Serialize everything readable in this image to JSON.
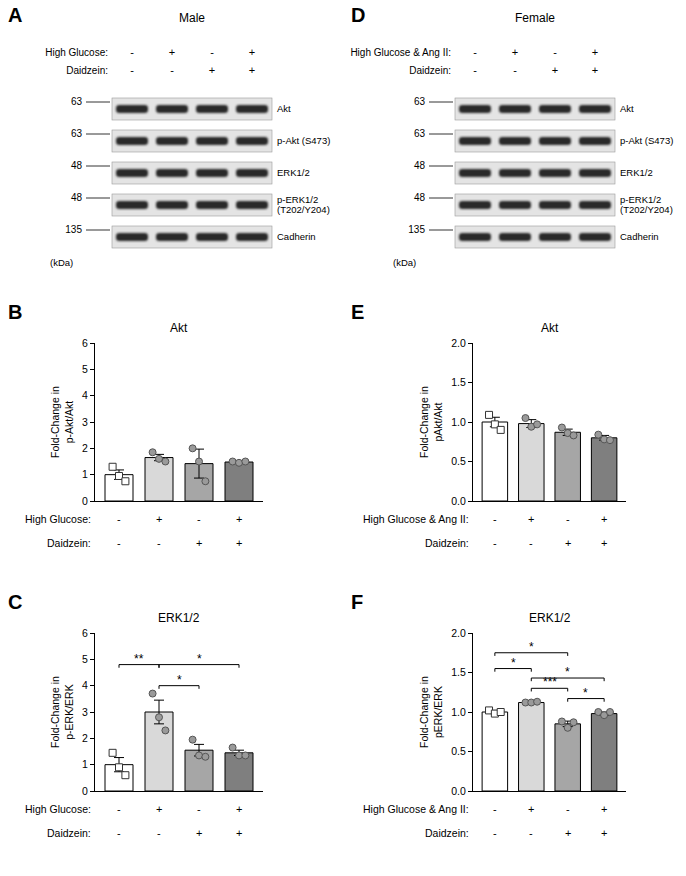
{
  "blots": [
    {
      "panel": "A",
      "title": "Male",
      "conditions": [
        {
          "label": "High Glucose:",
          "values": [
            "-",
            "+",
            "-",
            "+"
          ]
        },
        {
          "label": "Daidzein:",
          "values": [
            "-",
            "-",
            "+",
            "+"
          ]
        }
      ],
      "unit": "(kDa)",
      "bands": [
        {
          "label": "Akt",
          "mw": 63
        },
        {
          "label": "p-Akt (S473)",
          "mw": 63
        },
        {
          "label": "ERK1/2",
          "mw": 48
        },
        {
          "label": "p-ERK1/2\n(T202/Y204)",
          "mw": 48
        },
        {
          "label": "Cadherin",
          "mw": 135
        }
      ]
    },
    {
      "panel": "D",
      "title": "Female",
      "conditions": [
        {
          "label": "High Glucose & Ang II:",
          "values": [
            "-",
            "+",
            "-",
            "+"
          ]
        },
        {
          "label": "Daidzein:",
          "values": [
            "-",
            "-",
            "+",
            "+"
          ]
        }
      ],
      "unit": "(kDa)",
      "bands": [
        {
          "label": "Akt",
          "mw": 63
        },
        {
          "label": "p-Akt (S473)",
          "mw": 63
        },
        {
          "label": "ERK1/2",
          "mw": 48
        },
        {
          "label": "p-ERK1/2\n(T202/Y204)",
          "mw": 48
        },
        {
          "label": "Cadherin",
          "mw": 135
        }
      ]
    }
  ],
  "chart_data": [
    {
      "type": "bar",
      "panel": "B",
      "title": "Akt",
      "y_label": "Fold-Change in\np-Akt/Akt",
      "categories": [
        null,
        null,
        null,
        null
      ],
      "conditions": [
        {
          "label": "High Glucose:",
          "values": [
            "-",
            "+",
            "-",
            "+"
          ]
        },
        {
          "label": "Daidzein:",
          "values": [
            "-",
            "-",
            "+",
            "+"
          ]
        }
      ],
      "values": [
        1.0,
        1.65,
        1.42,
        1.48
      ],
      "errors": [
        0.18,
        0.12,
        0.55,
        0.03
      ],
      "colors": [
        "#ffffff",
        "#d9d9d9",
        "#a6a6a6",
        "#7f7f7f"
      ],
      "points": [
        {
          "marker": "square",
          "values": [
            1.3,
            0.95,
            0.75
          ]
        },
        {
          "marker": "circle",
          "values": [
            1.85,
            1.6,
            1.5
          ]
        },
        {
          "marker": "circle",
          "values": [
            2.0,
            1.5,
            0.75
          ]
        },
        {
          "marker": "circle",
          "values": [
            1.5,
            1.45,
            1.5
          ]
        }
      ],
      "ylim": [
        0,
        6
      ],
      "yticks": [
        0,
        1,
        2,
        3,
        4,
        5,
        6
      ],
      "comparisons": []
    },
    {
      "type": "bar",
      "panel": "C",
      "title": "ERK1/2",
      "y_label": "Fold-Change in\np-ERK/ERK",
      "categories": [
        null,
        null,
        null,
        null
      ],
      "conditions": [
        {
          "label": "High Glucose:",
          "values": [
            "-",
            "+",
            "-",
            "+"
          ]
        },
        {
          "label": "Daidzein:",
          "values": [
            "-",
            "-",
            "+",
            "+"
          ]
        }
      ],
      "values": [
        1.0,
        3.0,
        1.55,
        1.45
      ],
      "errors": [
        0.27,
        0.45,
        0.22,
        0.1
      ],
      "colors": [
        "#ffffff",
        "#d9d9d9",
        "#a6a6a6",
        "#7f7f7f"
      ],
      "points": [
        {
          "marker": "square",
          "values": [
            1.45,
            0.9,
            0.6
          ]
        },
        {
          "marker": "circle",
          "values": [
            3.7,
            2.8,
            2.3
          ]
        },
        {
          "marker": "circle",
          "values": [
            1.95,
            1.35,
            1.3
          ]
        },
        {
          "marker": "circle",
          "values": [
            1.65,
            1.35,
            1.35
          ]
        }
      ],
      "ylim": [
        0,
        6
      ],
      "yticks": [
        0,
        1,
        2,
        3,
        4,
        5,
        6
      ],
      "comparisons": [
        {
          "from": 1,
          "to": 2,
          "label": "*",
          "y": 4.0
        },
        {
          "from": 0,
          "to": 1,
          "label": "**",
          "y": 4.8
        },
        {
          "from": 1,
          "to": 3,
          "label": "*",
          "y": 4.8
        }
      ]
    },
    {
      "type": "bar",
      "panel": "E",
      "title": "Akt",
      "y_label": "Fold-Change in\npAkt/Akt",
      "categories": [
        null,
        null,
        null,
        null
      ],
      "conditions": [
        {
          "label": "High Glucose & Ang II:",
          "values": [
            "-",
            "+",
            "-",
            "+"
          ]
        },
        {
          "label": "Daidzein:",
          "values": [
            "-",
            "-",
            "+",
            "+"
          ]
        }
      ],
      "values": [
        1.0,
        0.98,
        0.87,
        0.8
      ],
      "errors": [
        0.06,
        0.05,
        0.04,
        0.03
      ],
      "colors": [
        "#ffffff",
        "#d9d9d9",
        "#a6a6a6",
        "#7f7f7f"
      ],
      "points": [
        {
          "marker": "square",
          "values": [
            1.09,
            0.97,
            0.9
          ]
        },
        {
          "marker": "circle",
          "values": [
            1.05,
            0.94,
            0.97
          ]
        },
        {
          "marker": "circle",
          "values": [
            0.93,
            0.86,
            0.83
          ]
        },
        {
          "marker": "circle",
          "values": [
            0.84,
            0.78,
            0.77
          ]
        }
      ],
      "ylim": [
        0,
        2
      ],
      "yticks": [
        {
          "value": 0,
          "label": "0.0"
        },
        0.5,
        {
          "value": 1,
          "label": "1.0"
        },
        1.5,
        {
          "value": 2,
          "label": "2.0"
        }
      ],
      "comparisons": []
    },
    {
      "type": "bar",
      "panel": "F",
      "title": "ERK1/2",
      "y_label": "Fold-Change in\npERK/ERK",
      "categories": [
        null,
        null,
        null,
        null
      ],
      "conditions": [
        {
          "label": "High Glucose & Ang II:",
          "values": [
            "-",
            "+",
            "-",
            "+"
          ]
        },
        {
          "label": "Daidzein:",
          "values": [
            "-",
            "-",
            "+",
            "+"
          ]
        }
      ],
      "values": [
        1.0,
        1.12,
        0.85,
        0.98
      ],
      "errors": [
        0.02,
        0.01,
        0.035,
        0.02
      ],
      "colors": [
        "#ffffff",
        "#d9d9d9",
        "#a6a6a6",
        "#7f7f7f"
      ],
      "points": [
        {
          "marker": "square",
          "values": [
            1.02,
            0.98,
            1.0
          ]
        },
        {
          "marker": "circle",
          "values": [
            1.12,
            1.12,
            1.13
          ]
        },
        {
          "marker": "circle",
          "values": [
            0.88,
            0.8,
            0.87
          ]
        },
        {
          "marker": "circle",
          "values": [
            1.0,
            0.96,
            1.0
          ]
        }
      ],
      "ylim": [
        0,
        2
      ],
      "yticks": [
        {
          "value": 0,
          "label": "0.0"
        },
        0.5,
        {
          "value": 1,
          "label": "1.0"
        },
        1.5,
        {
          "value": 2,
          "label": "2.0"
        }
      ],
      "comparisons": [
        {
          "from": 2,
          "to": 3,
          "label": "*",
          "y": 1.17
        },
        {
          "from": 1,
          "to": 2,
          "label": "***",
          "y": 1.3
        },
        {
          "from": 1,
          "to": 3,
          "label": "*",
          "y": 1.43
        },
        {
          "from": 0,
          "to": 1,
          "label": "*",
          "y": 1.55
        },
        {
          "from": 0,
          "to": 2,
          "label": "*",
          "y": 1.75
        }
      ]
    }
  ]
}
